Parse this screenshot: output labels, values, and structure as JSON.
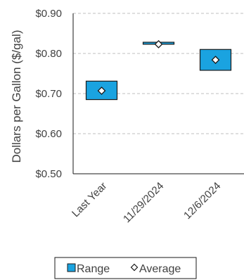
{
  "chart_data": {
    "type": "floating-bar",
    "title": "",
    "ylabel": "Dollars per Gallon ($/gal)",
    "xlabel": "",
    "categories": [
      "Last Year",
      "11/29/2024",
      "12/6/2024"
    ],
    "series": [
      {
        "name": "Range",
        "low": [
          0.685,
          0.823,
          0.758
        ],
        "high": [
          0.731,
          0.828,
          0.81
        ]
      },
      {
        "name": "Average",
        "values": [
          0.707,
          0.823,
          0.784
        ]
      }
    ],
    "ylim": [
      0.5,
      0.9
    ],
    "yticks": [
      0.5,
      0.6,
      0.7,
      0.8,
      0.9
    ],
    "ytick_labels": [
      "$0.50",
      "$0.60",
      "$0.70",
      "$0.80",
      "$0.90"
    ],
    "grid": true,
    "legend_position": "bottom",
    "colors": {
      "range_fill": "#1AA3E0",
      "range_stroke": "#1a1a1a",
      "average_fill": "#ffffff",
      "average_stroke": "#1a1a1a",
      "grid": "#bfbfbf",
      "axis": "#1a1a1a"
    }
  }
}
